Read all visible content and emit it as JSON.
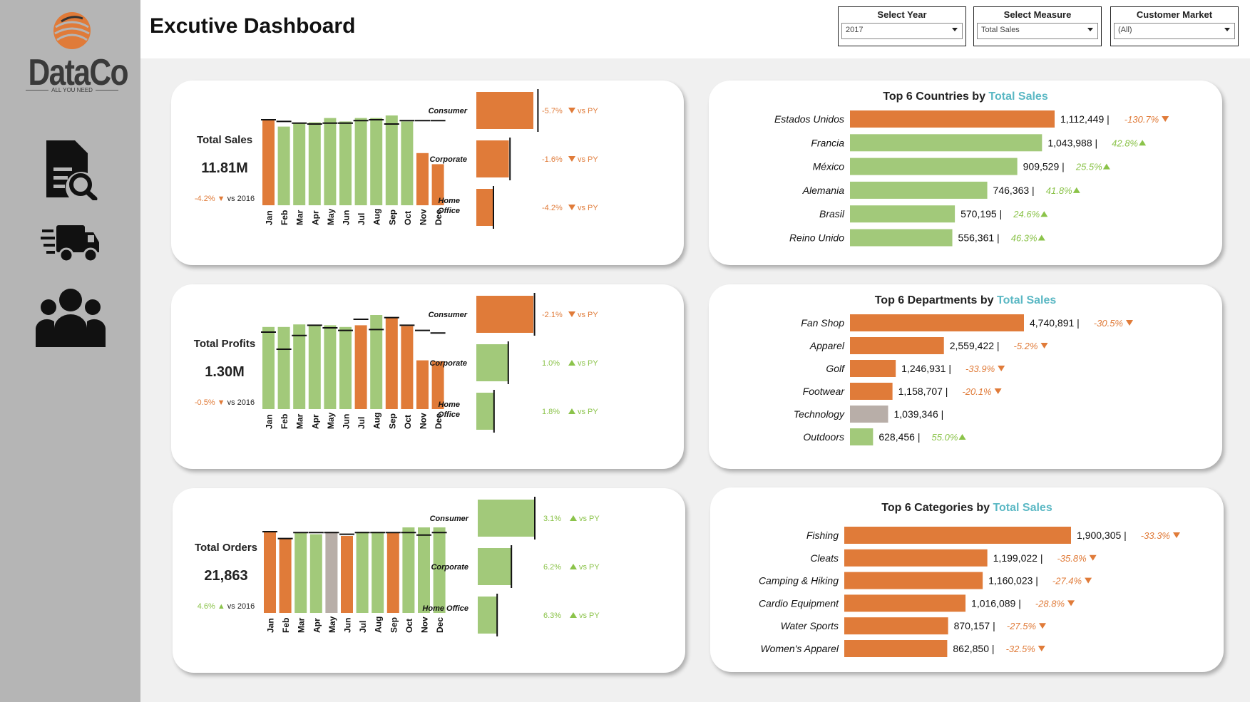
{
  "app": {
    "brand": "DataCo",
    "tagline": "ALL YOU NEED",
    "title": "Excutive Dashboard"
  },
  "colors": {
    "orange": "#e07b39",
    "green": "#a2c97a",
    "gray": "#b8aea8",
    "teal": "#5bb8c4"
  },
  "nav": [
    {
      "name": "report-search-icon"
    },
    {
      "name": "delivery-truck-icon"
    },
    {
      "name": "customers-group-icon"
    }
  ],
  "filters": {
    "year": {
      "label": "Select Year",
      "value": "2017"
    },
    "measure": {
      "label": "Select Measure",
      "value": "Total Sales"
    },
    "market": {
      "label": "Customer Market",
      "value": "(All)"
    }
  },
  "kpis": [
    {
      "title": "Total Sales",
      "value": "11.81M",
      "delta": "-4.2%",
      "direction": "down",
      "vs": "vs 2016",
      "chart_data": {
        "type": "bar",
        "categories": [
          "Jan",
          "Feb",
          "Mar",
          "Apr",
          "May",
          "Jun",
          "Jul",
          "Aug",
          "Sep",
          "Oct",
          "Nov",
          "Dec"
        ],
        "values": [
          100,
          92,
          96,
          97,
          102,
          98,
          102,
          102,
          105,
          98,
          61,
          48
        ],
        "py": [
          100,
          98,
          96,
          95,
          96,
          96,
          99,
          100,
          95,
          99,
          99,
          99
        ],
        "colors": [
          "orange",
          "green",
          "green",
          "green",
          "green",
          "green",
          "green",
          "green",
          "green",
          "green",
          "orange",
          "orange"
        ]
      },
      "segments": [
        {
          "label": "Consumer",
          "value": 100,
          "py": 108,
          "delta": "-5.7%",
          "direction": "down",
          "vs": "vs PY",
          "color": "orange"
        },
        {
          "label": "Corporate",
          "value": 57,
          "py": 59,
          "delta": "-1.6%",
          "direction": "down",
          "vs": "vs PY",
          "color": "orange"
        },
        {
          "label": "Home Office",
          "value": 29,
          "py": 30,
          "delta": "-4.2%",
          "direction": "down",
          "vs": "vs PY",
          "color": "orange"
        }
      ]
    },
    {
      "title": "Total Profits",
      "value": "1.30M",
      "delta": "-0.5%",
      "direction": "down",
      "vs": "vs 2016",
      "chart_data": {
        "type": "bar",
        "categories": [
          "Jan",
          "Feb",
          "Mar",
          "Apr",
          "May",
          "Jun",
          "Jul",
          "Aug",
          "Sep",
          "Oct",
          "Nov",
          "Dec"
        ],
        "values": [
          96,
          96,
          99,
          98,
          98,
          96,
          98,
          110,
          107,
          97,
          57,
          56
        ],
        "py": [
          90,
          70,
          86,
          98,
          95,
          92,
          105,
          93,
          107,
          98,
          92,
          89
        ],
        "colors": [
          "green",
          "green",
          "green",
          "green",
          "green",
          "green",
          "orange",
          "green",
          "orange",
          "orange",
          "orange",
          "orange"
        ]
      },
      "segments": [
        {
          "label": "Consumer",
          "value": 100,
          "py": 102,
          "delta": "-2.1%",
          "direction": "down",
          "vs": "vs PY",
          "color": "orange"
        },
        {
          "label": "Corporate",
          "value": 57,
          "py": 56,
          "delta": "1.0%",
          "direction": "up",
          "vs": "vs PY",
          "color": "green"
        },
        {
          "label": "Home Office",
          "value": 32,
          "py": 31,
          "delta": "1.8%",
          "direction": "up",
          "vs": "vs PY",
          "color": "green"
        }
      ]
    },
    {
      "title": "Total Orders",
      "value": "21,863",
      "delta": "4.6%",
      "direction": "up",
      "vs": "vs 2016",
      "chart_data": {
        "type": "bar",
        "categories": [
          "Jan",
          "Feb",
          "Mar",
          "Apr",
          "May",
          "Jun",
          "Jul",
          "Aug",
          "Sep",
          "Oct",
          "Nov",
          "Dec"
        ],
        "values": [
          95,
          87,
          94,
          92,
          95,
          90,
          95,
          95,
          94,
          100,
          100,
          100
        ],
        "py": [
          95,
          87,
          94,
          94,
          94,
          92,
          94,
          94,
          94,
          94,
          91,
          94
        ],
        "colors": [
          "orange",
          "orange",
          "green",
          "green",
          "gray",
          "orange",
          "green",
          "green",
          "orange",
          "green",
          "green",
          "green"
        ]
      },
      "segments": [
        {
          "label": "Consumer",
          "value": 100,
          "py": 100,
          "delta": "3.1%",
          "direction": "up",
          "vs": "vs PY",
          "color": "green"
        },
        {
          "label": "Corporate",
          "value": 59,
          "py": 59,
          "delta": "6.2%",
          "direction": "up",
          "vs": "vs PY",
          "color": "green"
        },
        {
          "label": "Home Office",
          "value": 34,
          "py": 34,
          "delta": "6.3%",
          "direction": "up",
          "vs": "vs PY",
          "color": "green"
        }
      ]
    }
  ],
  "rankings": [
    {
      "title": "Top 6 Countries by",
      "measure": "Total Sales",
      "chart_data": {
        "type": "bar",
        "orientation": "horizontal",
        "categories": [
          "Estados Unidos",
          "Francia",
          "México",
          "Alemania",
          "Brasil",
          "Reino Unido"
        ],
        "values": [
          1112449,
          1043988,
          909529,
          746363,
          570195,
          556361
        ],
        "labels": [
          "1,112,449",
          "1,043,988",
          "909,529",
          "746,363",
          "570,195",
          "556,361"
        ],
        "deltas": [
          "-130.7%",
          "42.8%",
          "25.5%",
          "41.8%",
          "24.6%",
          "46.3%"
        ],
        "directions": [
          "down",
          "up",
          "up",
          "up",
          "up",
          "up"
        ],
        "colors": [
          "orange",
          "green",
          "green",
          "green",
          "green",
          "green"
        ]
      }
    },
    {
      "title": "Top 6 Departments by",
      "measure": "Total Sales",
      "chart_data": {
        "type": "bar",
        "orientation": "horizontal",
        "categories": [
          "Fan Shop",
          "Apparel",
          "Golf",
          "Footwear",
          "Technology",
          "Outdoors"
        ],
        "values": [
          4740891,
          2559422,
          1246931,
          1158707,
          1039346,
          628456
        ],
        "labels": [
          "4,740,891",
          "2,559,422",
          "1,246,931",
          "1,158,707",
          "1,039,346",
          "628,456"
        ],
        "deltas": [
          "-30.5%",
          "-5.2%",
          "-33.9%",
          "-20.1%",
          "",
          "55.0%"
        ],
        "directions": [
          "down",
          "down",
          "down",
          "down",
          "none",
          "up"
        ],
        "colors": [
          "orange",
          "orange",
          "orange",
          "orange",
          "gray",
          "green"
        ]
      }
    },
    {
      "title": "Top 6 Categories by",
      "measure": "Total Sales",
      "chart_data": {
        "type": "bar",
        "orientation": "horizontal",
        "categories": [
          "Fishing",
          "Cleats",
          "Camping & Hiking",
          "Cardio Equipment",
          "Water Sports",
          "Women's Apparel"
        ],
        "values": [
          1900305,
          1199022,
          1160023,
          1016089,
          870157,
          862850
        ],
        "labels": [
          "1,900,305",
          "1,199,022",
          "1,160,023",
          "1,016,089",
          "870,157",
          "862,850"
        ],
        "deltas": [
          "-33.3%",
          "-35.8%",
          "-27.4%",
          "-28.8%",
          "-27.5%",
          "-32.5%"
        ],
        "directions": [
          "down",
          "down",
          "down",
          "down",
          "down",
          "down"
        ],
        "colors": [
          "orange",
          "orange",
          "orange",
          "orange",
          "orange",
          "orange"
        ]
      }
    }
  ]
}
